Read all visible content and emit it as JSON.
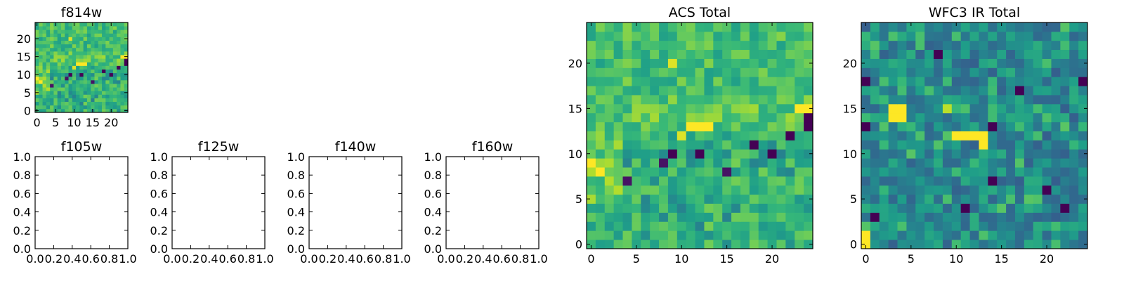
{
  "figure": {
    "colormap": "viridis",
    "colors": {
      "low": "#440154",
      "mid": "#21918c",
      "high": "#fde725"
    }
  },
  "chart_data": [
    {
      "type": "heatmap",
      "title": "f814w",
      "grid": [
        25,
        25
      ],
      "xlim": [
        -0.5,
        24.5
      ],
      "ylim": [
        -0.5,
        24.5
      ],
      "xticks": [
        0,
        5,
        10,
        15,
        20
      ],
      "yticks": [
        0,
        5,
        10,
        15,
        20
      ],
      "content": "image matching ACS Total"
    },
    {
      "type": "heatmap",
      "title": "ACS Total",
      "grid": [
        25,
        25
      ],
      "xlim": [
        -0.5,
        24.5
      ],
      "ylim": [
        -0.5,
        24.5
      ],
      "xticks": [
        0,
        5,
        10,
        15,
        20
      ],
      "yticks": [
        0,
        5,
        10,
        15,
        20
      ],
      "vmin": 0,
      "vmax": 1,
      "features": [
        {
          "x": 9,
          "y": 10,
          "value": 0.0
        },
        {
          "x": 12,
          "y": 10,
          "value": 0.0
        },
        {
          "x": 20,
          "y": 10,
          "value": 0.0
        },
        {
          "x": 18,
          "y": 11,
          "value": 0.0
        },
        {
          "x": 22,
          "y": 12,
          "value": 0.0
        },
        {
          "x": 24,
          "y": 13,
          "value": 0.0
        },
        {
          "x": 24,
          "y": 14,
          "value": 0.0
        },
        {
          "x": 8,
          "y": 9,
          "value": 0.05
        },
        {
          "x": 15,
          "y": 8,
          "value": 0.05
        },
        {
          "x": 4,
          "y": 7,
          "value": 0.05
        },
        {
          "x": 11,
          "y": 13,
          "value": 1.0
        },
        {
          "x": 12,
          "y": 13,
          "value": 1.0
        },
        {
          "x": 13,
          "y": 13,
          "value": 1.0
        },
        {
          "x": 10,
          "y": 12,
          "value": 0.95
        },
        {
          "x": 23,
          "y": 15,
          "value": 1.0
        },
        {
          "x": 24,
          "y": 15,
          "value": 1.0
        },
        {
          "x": 0,
          "y": 9,
          "value": 1.0
        },
        {
          "x": 1,
          "y": 8,
          "value": 1.0
        },
        {
          "x": 9,
          "y": 20,
          "value": 0.95
        }
      ]
    },
    {
      "type": "heatmap",
      "title": "WFC3 IR Total",
      "grid": [
        25,
        25
      ],
      "xlim": [
        -0.5,
        24.5
      ],
      "ylim": [
        -0.5,
        24.5
      ],
      "xticks": [
        0,
        5,
        10,
        15,
        20
      ],
      "yticks": [
        0,
        5,
        10,
        15,
        20
      ],
      "vmin": 0,
      "vmax": 1,
      "features": [
        {
          "x": 0,
          "y": 18,
          "value": 0.0
        },
        {
          "x": 0,
          "y": 13,
          "value": 0.0
        },
        {
          "x": 8,
          "y": 21,
          "value": 0.0
        },
        {
          "x": 14,
          "y": 13,
          "value": 0.0
        },
        {
          "x": 17,
          "y": 17,
          "value": 0.0
        },
        {
          "x": 24,
          "y": 18,
          "value": 0.0
        },
        {
          "x": 14,
          "y": 7,
          "value": 0.0
        },
        {
          "x": 20,
          "y": 6,
          "value": 0.0
        },
        {
          "x": 11,
          "y": 4,
          "value": 0.0
        },
        {
          "x": 22,
          "y": 4,
          "value": 0.0
        },
        {
          "x": 1,
          "y": 3,
          "value": 0.0
        },
        {
          "x": 3,
          "y": 15,
          "value": 1.0
        },
        {
          "x": 4,
          "y": 15,
          "value": 1.0
        },
        {
          "x": 3,
          "y": 14,
          "value": 1.0
        },
        {
          "x": 4,
          "y": 14,
          "value": 1.0
        },
        {
          "x": 9,
          "y": 15,
          "value": 0.9
        },
        {
          "x": 10,
          "y": 12,
          "value": 1.0
        },
        {
          "x": 11,
          "y": 12,
          "value": 1.0
        },
        {
          "x": 12,
          "y": 12,
          "value": 1.0
        },
        {
          "x": 13,
          "y": 12,
          "value": 1.0
        },
        {
          "x": 13,
          "y": 11,
          "value": 1.0
        },
        {
          "x": 0,
          "y": 1,
          "value": 1.0
        },
        {
          "x": 0,
          "y": 0,
          "value": 1.0
        }
      ]
    },
    {
      "type": "empty",
      "title": "f105w",
      "xlim": [
        0,
        1
      ],
      "ylim": [
        0,
        1
      ],
      "xticks": [
        0.0,
        0.2,
        0.4,
        0.6,
        0.8,
        1.0
      ],
      "yticks": [
        0.0,
        0.2,
        0.4,
        0.6,
        0.8,
        1.0
      ]
    },
    {
      "type": "empty",
      "title": "f125w",
      "xlim": [
        0,
        1
      ],
      "ylim": [
        0,
        1
      ],
      "xticks": [
        0.0,
        0.2,
        0.4,
        0.6,
        0.8,
        1.0
      ],
      "yticks": [
        0.0,
        0.2,
        0.4,
        0.6,
        0.8,
        1.0
      ]
    },
    {
      "type": "empty",
      "title": "f140w",
      "xlim": [
        0,
        1
      ],
      "ylim": [
        0,
        1
      ],
      "xticks": [
        0.0,
        0.2,
        0.4,
        0.6,
        0.8,
        1.0
      ],
      "yticks": [
        0.0,
        0.2,
        0.4,
        0.6,
        0.8,
        1.0
      ]
    },
    {
      "type": "empty",
      "title": "f160w",
      "xlim": [
        0,
        1
      ],
      "ylim": [
        0,
        1
      ],
      "xticks": [
        0.0,
        0.2,
        0.4,
        0.6,
        0.8,
        1.0
      ],
      "yticks": [
        0.0,
        0.2,
        0.4,
        0.6,
        0.8,
        1.0
      ]
    }
  ]
}
